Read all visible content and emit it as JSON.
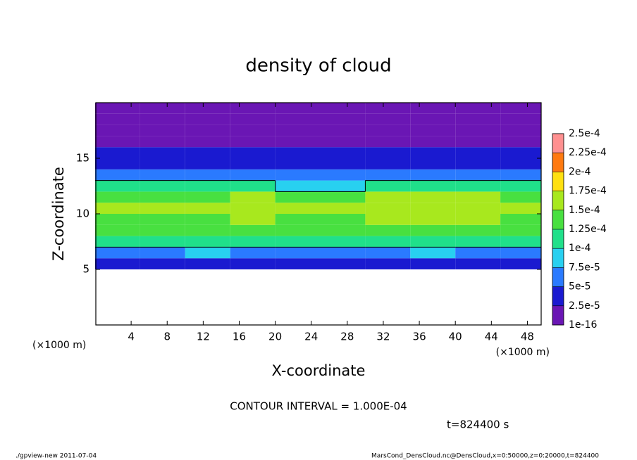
{
  "chart_data": {
    "type": "heatmap",
    "title": "density of cloud",
    "x_label": "X-coordinate",
    "y_label": "Z-coordinate",
    "x_unit": "(×1000 m)",
    "y_unit": "(×1000 m)",
    "xlim": [
      0,
      50
    ],
    "ylim": [
      0,
      20
    ],
    "xticks": [
      4,
      8,
      12,
      16,
      20,
      24,
      28,
      32,
      36,
      40,
      44,
      48
    ],
    "yticks": [
      5,
      10,
      15
    ],
    "x": [
      2.5,
      7.5,
      12.5,
      17.5,
      22.5,
      27.5,
      32.5,
      37.5,
      42.5,
      47.5
    ],
    "y": [
      0.5,
      1.5,
      2.5,
      3.5,
      4.5,
      5.5,
      6.5,
      7.5,
      8.5,
      9.5,
      10.5,
      11.5,
      12.5,
      13.5,
      14.5,
      15.5,
      16.5,
      17.5,
      18.5,
      19.5
    ],
    "z": [
      [
        null,
        null,
        null,
        null,
        null,
        null,
        null,
        null,
        null,
        null
      ],
      [
        null,
        null,
        null,
        null,
        null,
        null,
        null,
        null,
        null,
        null
      ],
      [
        null,
        null,
        null,
        null,
        null,
        null,
        null,
        null,
        null,
        null
      ],
      [
        null,
        null,
        null,
        null,
        null,
        null,
        null,
        null,
        null,
        null
      ],
      [
        null,
        null,
        null,
        null,
        null,
        null,
        null,
        null,
        null,
        null
      ],
      [
        3e-05,
        3e-05,
        3e-05,
        3.5e-05,
        3e-05,
        3e-05,
        3e-05,
        3e-05,
        3e-05,
        3e-05
      ],
      [
        7e-05,
        7e-05,
        7.5e-05,
        7e-05,
        7e-05,
        7e-05,
        7e-05,
        7.5e-05,
        7e-05,
        7e-05
      ],
      [
        0.000105,
        0.000105,
        0.000105,
        0.000105,
        0.000105,
        0.000105,
        0.000105,
        0.000105,
        0.000105,
        0.000105
      ],
      [
        0.00013,
        0.00013,
        0.00013,
        0.000135,
        0.00013,
        0.00013,
        0.000135,
        0.000135,
        0.00013,
        0.00013
      ],
      [
        0.000145,
        0.000145,
        0.000145,
        0.00015,
        0.000145,
        0.000145,
        0.000155,
        0.000155,
        0.00015,
        0.000145
      ],
      [
        0.000155,
        0.00015,
        0.000155,
        0.000165,
        0.00015,
        0.00015,
        0.00017,
        0.00017,
        0.00016,
        0.00015
      ],
      [
        0.000145,
        0.000145,
        0.000145,
        0.00015,
        0.00013,
        0.00013,
        0.00016,
        0.00016,
        0.00015,
        0.00014
      ],
      [
        0.000105,
        0.000105,
        0.000105,
        0.000105,
        8e-05,
        8e-05,
        0.00011,
        0.00011,
        0.00011,
        0.000105
      ],
      [
        6e-05,
        6e-05,
        6e-05,
        6e-05,
        5.5e-05,
        5.5e-05,
        6e-05,
        6e-05,
        6e-05,
        6e-05
      ],
      [
        4e-05,
        4e-05,
        4e-05,
        4e-05,
        4e-05,
        4e-05,
        4e-05,
        4e-05,
        4e-05,
        4e-05
      ],
      [
        3e-05,
        3e-05,
        3e-05,
        3e-05,
        3e-05,
        3e-05,
        3e-05,
        3e-05,
        3e-05,
        3e-05
      ],
      [
        2e-05,
        2e-05,
        2e-05,
        2e-05,
        2e-05,
        2e-05,
        2e-05,
        2e-05,
        2e-05,
        2e-05
      ],
      [
        1.5e-05,
        1.5e-05,
        1.5e-05,
        1.5e-05,
        1.5e-05,
        1.5e-05,
        1.5e-05,
        1.5e-05,
        1.5e-05,
        1.5e-05
      ],
      [
        1e-05,
        1e-05,
        1e-05,
        1e-05,
        1e-05,
        1e-05,
        1e-05,
        1e-05,
        1e-05,
        1e-05
      ],
      [
        8e-06,
        8e-06,
        8e-06,
        8e-06,
        8e-06,
        8e-06,
        8e-06,
        8e-06,
        8e-06,
        8e-06
      ]
    ],
    "levels": [
      {
        "value": 1e-16,
        "label": "1e-16"
      },
      {
        "value": 2.5e-05,
        "label": "2.5e-5"
      },
      {
        "value": 5e-05,
        "label": "5e-5"
      },
      {
        "value": 7.5e-05,
        "label": "7.5e-5"
      },
      {
        "value": 0.0001,
        "label": "1e-4"
      },
      {
        "value": 0.000125,
        "label": "1.25e-4"
      },
      {
        "value": 0.00015,
        "label": "1.5e-4"
      },
      {
        "value": 0.000175,
        "label": "1.75e-4"
      },
      {
        "value": 0.0002,
        "label": "2e-4"
      },
      {
        "value": 0.000225,
        "label": "2.25e-4"
      },
      {
        "value": 0.00025,
        "label": "2.5e-4"
      }
    ],
    "colors": [
      "#6a16b4",
      "#1a1ad0",
      "#2a7aff",
      "#28d0f0",
      "#20e08a",
      "#48e040",
      "#a8e81e",
      "#ffe010",
      "#ff7a10",
      "#ff9090"
    ],
    "contour_interval": 0.0001,
    "contour_label": "CONTOUR INTERVAL = 1.000E-04",
    "time_label": "t=824400 s",
    "footer_left": "./gpview-new  2011-07-04",
    "footer_right": "MarsCond_DensCloud.nc@DensCloud,x=0:50000,z=0:20000,t=824400"
  }
}
